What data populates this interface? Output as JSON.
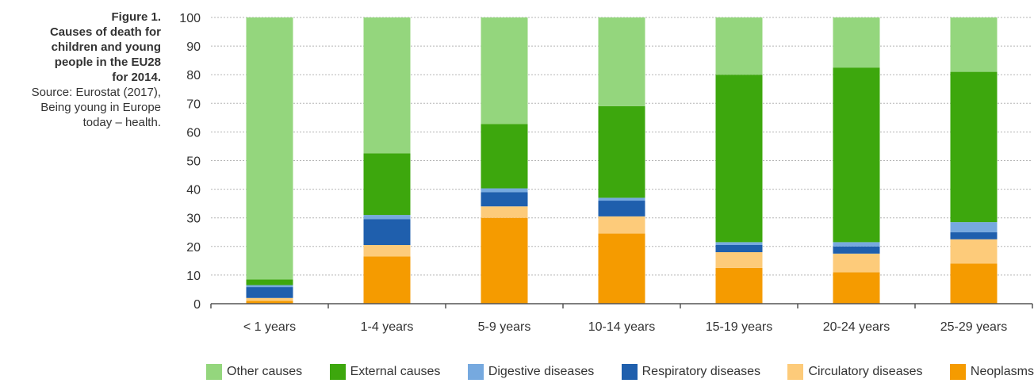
{
  "figure": {
    "title": "Figure 1.\nCauses of death for\nchildren and young\npeople in the EU28\nfor 2014.",
    "source": "Source: Eurostat (2017),\nBeing young in Europe\ntoday – health."
  },
  "chart_data": {
    "type": "bar",
    "stacked": true,
    "title": "",
    "xlabel": "",
    "ylabel": "",
    "ylim": [
      0,
      100
    ],
    "yticks": [
      0,
      10,
      20,
      30,
      40,
      50,
      60,
      70,
      80,
      90,
      100
    ],
    "grid": "horizontal dotted",
    "legend_position": "bottom",
    "categories": [
      "< 1 years",
      "1-4 years",
      "5-9 years",
      "10-14 years",
      "15-19 years",
      "20-24 years",
      "25-29 years"
    ],
    "series": [
      {
        "name": "Neoplasms",
        "color": "#F59B00",
        "values": [
          1,
          16.5,
          30,
          24.5,
          12.5,
          11,
          14
        ]
      },
      {
        "name": "Circulatory diseases",
        "color": "#FDCB7A",
        "values": [
          1,
          4,
          4,
          6,
          5.5,
          6.5,
          8.5
        ]
      },
      {
        "name": "Respiratory diseases",
        "color": "#1F5FAD",
        "values": [
          3.8,
          9,
          5,
          5.5,
          2.5,
          2.5,
          2.5
        ]
      },
      {
        "name": "Digestive diseases",
        "color": "#76A9DF",
        "values": [
          0.7,
          1.5,
          1.3,
          1,
          1,
          1.5,
          3.5
        ]
      },
      {
        "name": "External causes",
        "color": "#3DA70D",
        "values": [
          2,
          21.5,
          22.5,
          32,
          58.5,
          61,
          52.5
        ]
      },
      {
        "name": "Other causes",
        "color": "#94D67D",
        "values": [
          91.5,
          47.5,
          37.2,
          31,
          20,
          17.5,
          19
        ]
      }
    ],
    "legend_order": [
      "Other causes",
      "External causes",
      "Digestive diseases",
      "Respiratory diseases",
      "Circulatory diseases",
      "Neoplasms"
    ]
  }
}
